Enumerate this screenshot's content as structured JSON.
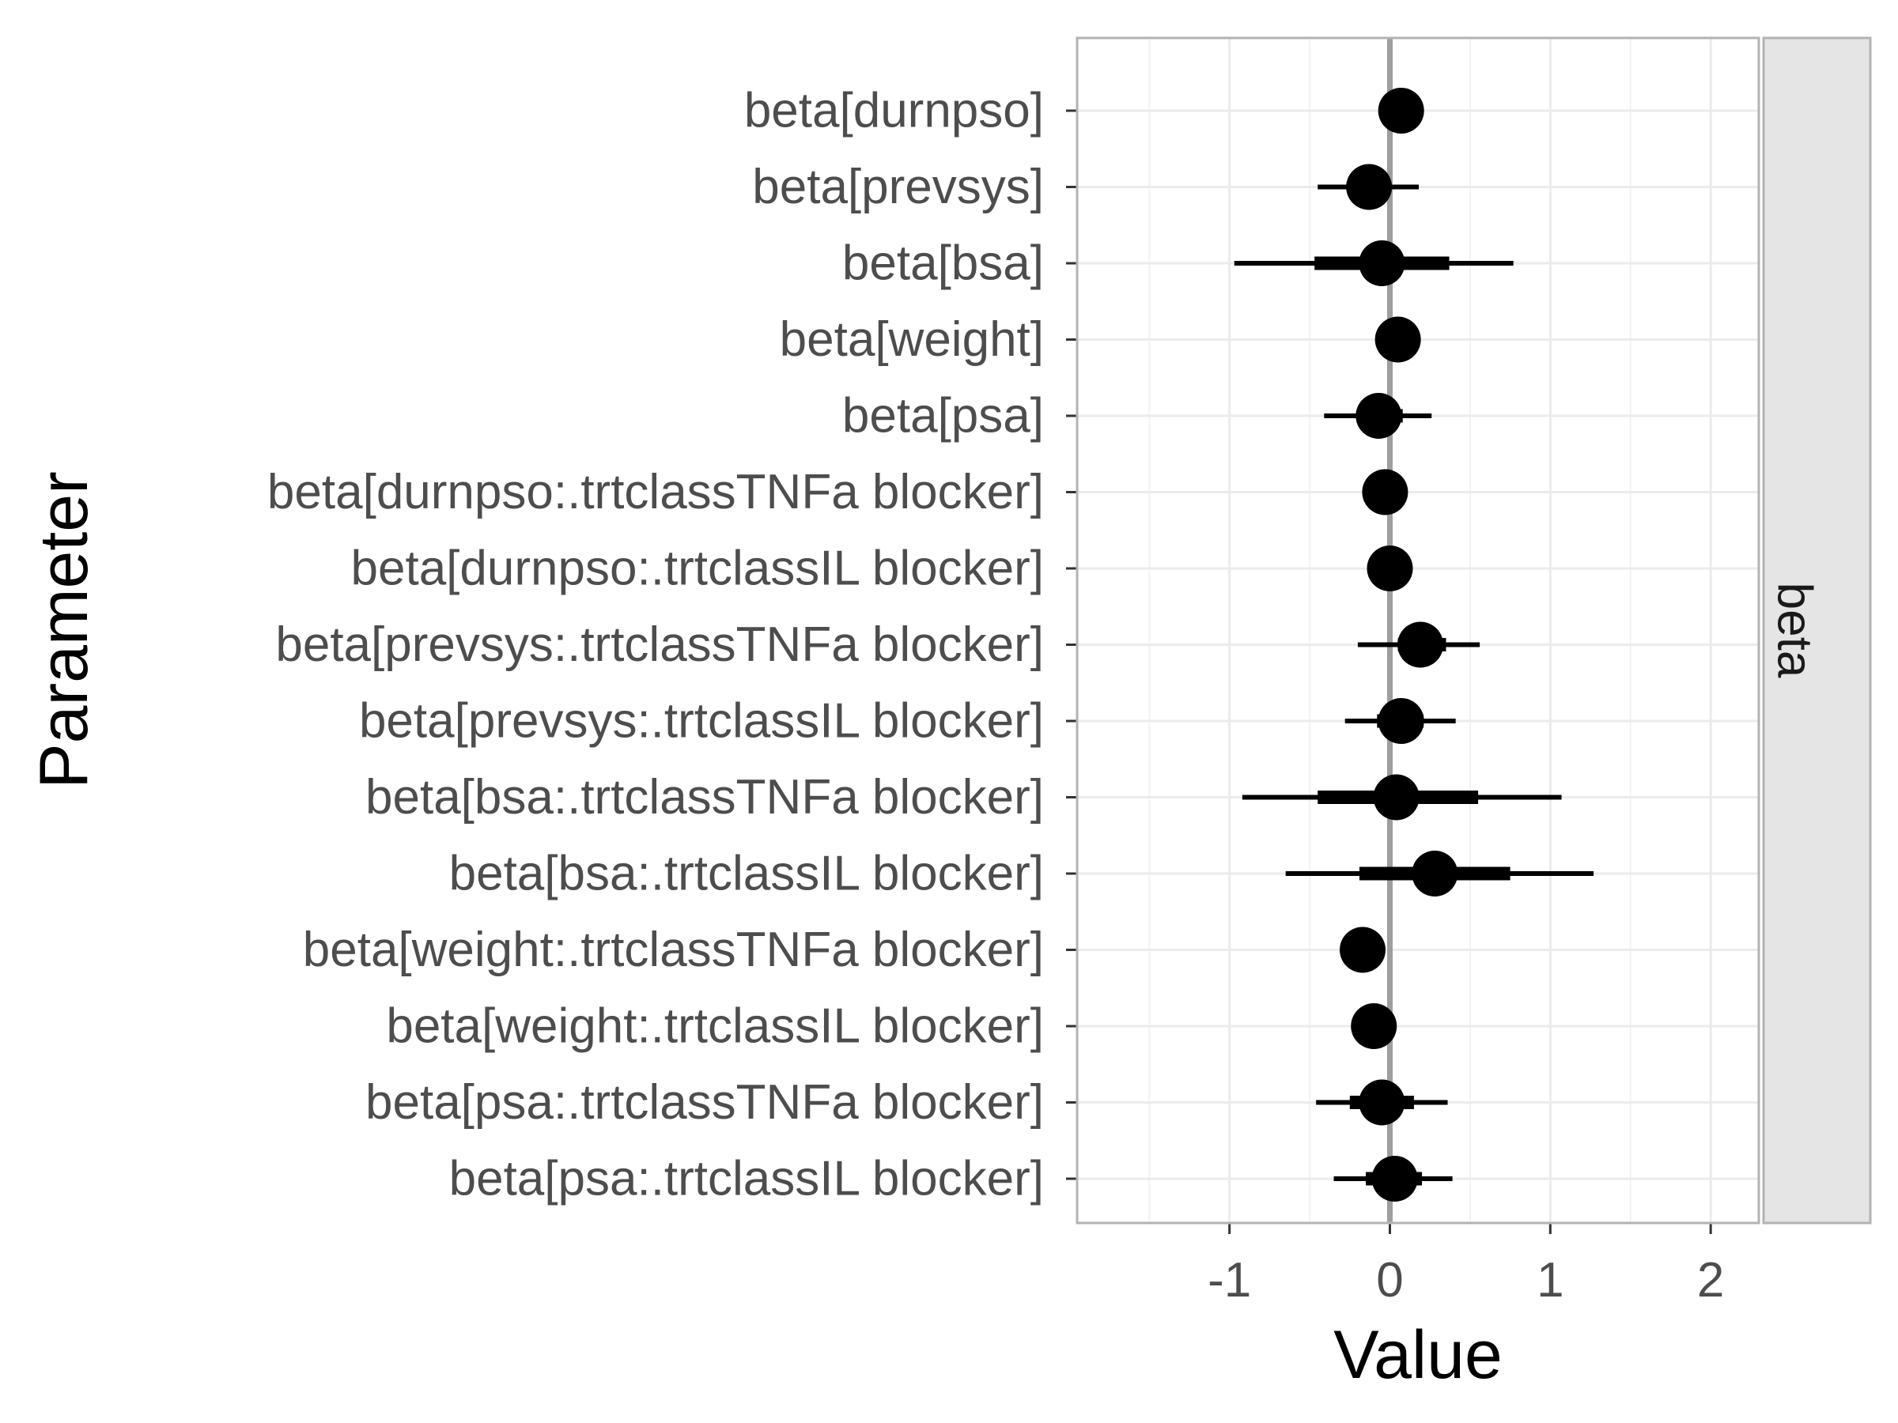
{
  "chart_data": {
    "type": "scatter",
    "xlabel": "Value",
    "ylabel": "Parameter",
    "facet_label": "beta",
    "xlim": [
      -1.95,
      2.3
    ],
    "x_ticks": [
      -1,
      0,
      1,
      2
    ],
    "x_tick_labels": [
      "-1",
      "0",
      "1",
      "2"
    ],
    "reference_line": 0,
    "grid": true,
    "point_color": "#000000",
    "density_color": "#a6a6a6",
    "parameters": [
      {
        "label": "beta[durnpso]",
        "median": 0.07,
        "inner": [
          0.03,
          0.1
        ],
        "outer": [
          0.0,
          0.13
        ]
      },
      {
        "label": "beta[prevsys]",
        "median": -0.13,
        "inner": [
          -0.25,
          -0.02
        ],
        "outer": [
          -0.45,
          0.18
        ]
      },
      {
        "label": "beta[bsa]",
        "median": -0.05,
        "inner": [
          -0.47,
          0.37
        ],
        "outer": [
          -0.97,
          0.77
        ]
      },
      {
        "label": "beta[weight]",
        "median": 0.05,
        "inner": [
          0.02,
          0.08
        ],
        "outer": [
          -0.01,
          0.11
        ]
      },
      {
        "label": "beta[psa]",
        "median": -0.07,
        "inner": [
          -0.2,
          0.08
        ],
        "outer": [
          -0.41,
          0.26
        ]
      },
      {
        "label": "beta[durnpso:.trtclassTNFa blocker]",
        "median": -0.03,
        "inner": [
          -0.08,
          0.02
        ],
        "outer": [
          -0.13,
          0.07
        ]
      },
      {
        "label": "beta[durnpso:.trtclassIL blocker]",
        "median": 0.0,
        "inner": [
          -0.05,
          0.05
        ],
        "outer": [
          -0.1,
          0.1
        ]
      },
      {
        "label": "beta[prevsys:.trtclassTNFa blocker]",
        "median": 0.19,
        "inner": [
          0.05,
          0.35
        ],
        "outer": [
          -0.2,
          0.56
        ]
      },
      {
        "label": "beta[prevsys:.trtclassIL blocker]",
        "median": 0.07,
        "inner": [
          -0.08,
          0.21
        ],
        "outer": [
          -0.28,
          0.41
        ]
      },
      {
        "label": "beta[bsa:.trtclassTNFa blocker]",
        "median": 0.04,
        "inner": [
          -0.45,
          0.55
        ],
        "outer": [
          -0.92,
          1.07
        ]
      },
      {
        "label": "beta[bsa:.trtclassIL blocker]",
        "median": 0.28,
        "inner": [
          -0.19,
          0.75
        ],
        "outer": [
          -0.65,
          1.27
        ]
      },
      {
        "label": "beta[weight:.trtclassTNFa blocker]",
        "median": -0.17,
        "inner": [
          -0.2,
          -0.14
        ],
        "outer": [
          -0.23,
          -0.11
        ]
      },
      {
        "label": "beta[weight:.trtclassIL blocker]",
        "median": -0.1,
        "inner": [
          -0.13,
          -0.07
        ],
        "outer": [
          -0.16,
          -0.04
        ]
      },
      {
        "label": "beta[psa:.trtclassTNFa blocker]",
        "median": -0.05,
        "inner": [
          -0.25,
          0.15
        ],
        "outer": [
          -0.46,
          0.36
        ]
      },
      {
        "label": "beta[psa:.trtclassIL blocker]",
        "median": 0.03,
        "inner": [
          -0.15,
          0.2
        ],
        "outer": [
          -0.35,
          0.39
        ]
      }
    ]
  }
}
